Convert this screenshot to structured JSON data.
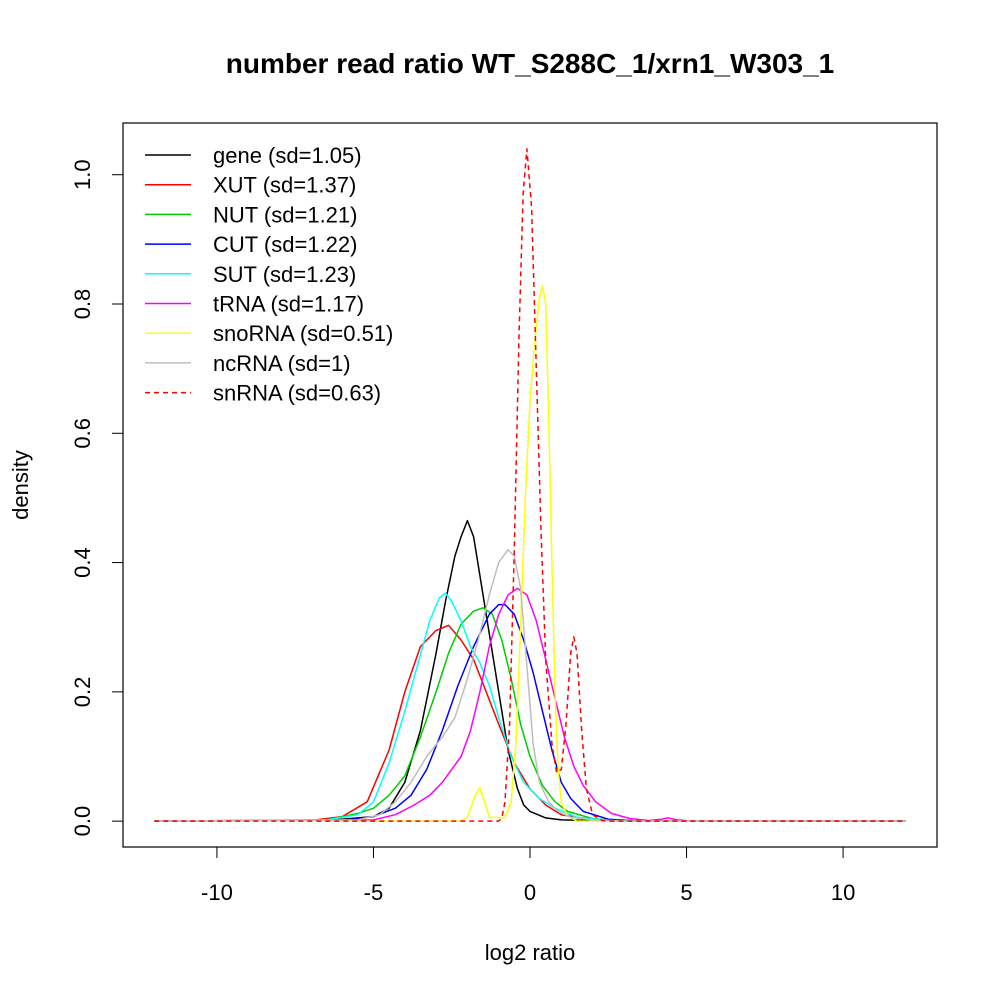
{
  "chart_data": {
    "type": "line",
    "title": "number read ratio WT_S288C_1/xrn1_W303_1",
    "xlabel": "log2 ratio",
    "ylabel": "density",
    "xlim": [
      -13,
      13
    ],
    "ylim": [
      -0.04,
      1.08
    ],
    "xticks": [
      -10,
      -5,
      0,
      5,
      10
    ],
    "xtick_labels": [
      "-10",
      "-5",
      "0",
      "5",
      "10"
    ],
    "yticks": [
      0.0,
      0.2,
      0.4,
      0.6,
      0.8,
      1.0
    ],
    "ytick_labels": [
      "0.0",
      "0.2",
      "0.4",
      "0.6",
      "0.8",
      "1.0"
    ],
    "grid": false,
    "legend_position": "top-left",
    "series": [
      {
        "name": "gene (sd=1.05)",
        "color": "#000000",
        "dash": "solid",
        "points": [
          [
            -12,
            0
          ],
          [
            -6.5,
            0.001
          ],
          [
            -5,
            0.007
          ],
          [
            -4.5,
            0.02
          ],
          [
            -4,
            0.06
          ],
          [
            -3.5,
            0.14
          ],
          [
            -3,
            0.26
          ],
          [
            -2.7,
            0.34
          ],
          [
            -2.4,
            0.41
          ],
          [
            -2.2,
            0.44
          ],
          [
            -2,
            0.465
          ],
          [
            -1.8,
            0.44
          ],
          [
            -1.6,
            0.38
          ],
          [
            -1.3,
            0.29
          ],
          [
            -1,
            0.2
          ],
          [
            -0.7,
            0.11
          ],
          [
            -0.4,
            0.05
          ],
          [
            -0.2,
            0.025
          ],
          [
            0,
            0.015
          ],
          [
            0.5,
            0.005
          ],
          [
            1,
            0.002
          ],
          [
            3,
            0
          ],
          [
            12,
            0
          ]
        ]
      },
      {
        "name": "XUT (sd=1.37)",
        "color": "#ff0000",
        "dash": "solid",
        "points": [
          [
            -12,
            0
          ],
          [
            -7,
            0.001
          ],
          [
            -6,
            0.007
          ],
          [
            -5.2,
            0.03
          ],
          [
            -4.5,
            0.11
          ],
          [
            -4,
            0.2
          ],
          [
            -3.5,
            0.27
          ],
          [
            -3,
            0.295
          ],
          [
            -2.6,
            0.303
          ],
          [
            -2.2,
            0.28
          ],
          [
            -1.8,
            0.25
          ],
          [
            -1.4,
            0.2
          ],
          [
            -1,
            0.15
          ],
          [
            -0.5,
            0.09
          ],
          [
            0,
            0.05
          ],
          [
            0.5,
            0.025
          ],
          [
            1,
            0.01
          ],
          [
            2,
            0.002
          ],
          [
            3,
            0
          ],
          [
            12,
            0
          ]
        ]
      },
      {
        "name": "NUT (sd=1.21)",
        "color": "#00cd00",
        "dash": "solid",
        "points": [
          [
            -12,
            0
          ],
          [
            -6.5,
            0.002
          ],
          [
            -5.5,
            0.012
          ],
          [
            -5,
            0.02
          ],
          [
            -4.5,
            0.04
          ],
          [
            -4,
            0.07
          ],
          [
            -3.5,
            0.13
          ],
          [
            -3,
            0.2
          ],
          [
            -2.6,
            0.26
          ],
          [
            -2.2,
            0.305
          ],
          [
            -1.8,
            0.325
          ],
          [
            -1.5,
            0.33
          ],
          [
            -1.2,
            0.32
          ],
          [
            -0.9,
            0.28
          ],
          [
            -0.6,
            0.22
          ],
          [
            -0.3,
            0.15
          ],
          [
            0,
            0.1
          ],
          [
            0.4,
            0.055
          ],
          [
            0.8,
            0.03
          ],
          [
            1.2,
            0.015
          ],
          [
            2,
            0.004
          ],
          [
            3,
            0
          ],
          [
            12,
            0
          ]
        ]
      },
      {
        "name": "CUT (sd=1.22)",
        "color": "#0000ff",
        "dash": "solid",
        "points": [
          [
            -12,
            0
          ],
          [
            -6,
            0.001
          ],
          [
            -5,
            0.007
          ],
          [
            -4.3,
            0.02
          ],
          [
            -3.8,
            0.04
          ],
          [
            -3.3,
            0.08
          ],
          [
            -2.8,
            0.14
          ],
          [
            -2.3,
            0.21
          ],
          [
            -1.8,
            0.27
          ],
          [
            -1.3,
            0.32
          ],
          [
            -1,
            0.335
          ],
          [
            -0.8,
            0.335
          ],
          [
            -0.5,
            0.32
          ],
          [
            -0.2,
            0.28
          ],
          [
            0.1,
            0.23
          ],
          [
            0.4,
            0.17
          ],
          [
            0.7,
            0.11
          ],
          [
            1,
            0.06
          ],
          [
            1.3,
            0.035
          ],
          [
            1.7,
            0.015
          ],
          [
            2.5,
            0.003
          ],
          [
            3.5,
            0
          ],
          [
            12,
            0
          ]
        ]
      },
      {
        "name": "SUT (sd=1.23)",
        "color": "#00ffff",
        "dash": "solid",
        "points": [
          [
            -12,
            0
          ],
          [
            -6.5,
            0.002
          ],
          [
            -5.5,
            0.01
          ],
          [
            -5,
            0.03
          ],
          [
            -4.5,
            0.09
          ],
          [
            -4,
            0.17
          ],
          [
            -3.6,
            0.24
          ],
          [
            -3.2,
            0.31
          ],
          [
            -2.9,
            0.345
          ],
          [
            -2.7,
            0.353
          ],
          [
            -2.5,
            0.34
          ],
          [
            -2.2,
            0.31
          ],
          [
            -1.9,
            0.27
          ],
          [
            -1.6,
            0.245
          ],
          [
            -1.3,
            0.21
          ],
          [
            -1,
            0.16
          ],
          [
            -0.6,
            0.1
          ],
          [
            -0.2,
            0.06
          ],
          [
            0.3,
            0.035
          ],
          [
            0.8,
            0.02
          ],
          [
            1.5,
            0.006
          ],
          [
            2.5,
            0.001
          ],
          [
            3.5,
            0
          ],
          [
            12,
            0
          ]
        ]
      },
      {
        "name": "tRNA (sd=1.17)",
        "color": "#ff00ff",
        "dash": "solid",
        "points": [
          [
            -12,
            0
          ],
          [
            -5,
            0.002
          ],
          [
            -4.3,
            0.01
          ],
          [
            -3.7,
            0.025
          ],
          [
            -3.2,
            0.04
          ],
          [
            -2.8,
            0.06
          ],
          [
            -2.5,
            0.08
          ],
          [
            -2.2,
            0.1
          ],
          [
            -1.9,
            0.14
          ],
          [
            -1.6,
            0.2
          ],
          [
            -1.3,
            0.27
          ],
          [
            -1,
            0.32
          ],
          [
            -0.7,
            0.35
          ],
          [
            -0.4,
            0.36
          ],
          [
            -0.1,
            0.35
          ],
          [
            0.2,
            0.31
          ],
          [
            0.5,
            0.25
          ],
          [
            0.8,
            0.19
          ],
          [
            1.1,
            0.13
          ],
          [
            1.4,
            0.085
          ],
          [
            1.7,
            0.055
          ],
          [
            2.1,
            0.03
          ],
          [
            2.6,
            0.012
          ],
          [
            3.2,
            0.004
          ],
          [
            3.8,
            0.001
          ],
          [
            4.2,
            0.003
          ],
          [
            4.4,
            0.005
          ],
          [
            4.7,
            0.002
          ],
          [
            5.2,
            0
          ],
          [
            12,
            0
          ]
        ]
      },
      {
        "name": "snoRNA (sd=0.51)",
        "color": "#ffff00",
        "dash": "solid",
        "points": [
          [
            -12,
            0
          ],
          [
            -2.2,
            0
          ],
          [
            -2,
            0.006
          ],
          [
            -1.75,
            0.04
          ],
          [
            -1.6,
            0.052
          ],
          [
            -1.45,
            0.03
          ],
          [
            -1.3,
            0.006
          ],
          [
            -0.8,
            0.005
          ],
          [
            -0.6,
            0.03
          ],
          [
            -0.45,
            0.12
          ],
          [
            -0.3,
            0.3
          ],
          [
            -0.15,
            0.5
          ],
          [
            0,
            0.65
          ],
          [
            0.15,
            0.74
          ],
          [
            0.3,
            0.81
          ],
          [
            0.4,
            0.828
          ],
          [
            0.5,
            0.8
          ],
          [
            0.6,
            0.62
          ],
          [
            0.7,
            0.4
          ],
          [
            0.8,
            0.2
          ],
          [
            0.9,
            0.08
          ],
          [
            1,
            0.03
          ],
          [
            1.2,
            0.008
          ],
          [
            1.5,
            0
          ],
          [
            12,
            0
          ]
        ]
      },
      {
        "name": "ncRNA (sd=1)",
        "color": "#bebebe",
        "dash": "solid",
        "points": [
          [
            -12,
            0
          ],
          [
            -5.5,
            0.002
          ],
          [
            -4.8,
            0.01
          ],
          [
            -4.3,
            0.03
          ],
          [
            -3.8,
            0.06
          ],
          [
            -3.3,
            0.1
          ],
          [
            -2.8,
            0.13
          ],
          [
            -2.4,
            0.16
          ],
          [
            -2,
            0.22
          ],
          [
            -1.6,
            0.29
          ],
          [
            -1.3,
            0.35
          ],
          [
            -1,
            0.4
          ],
          [
            -0.7,
            0.42
          ],
          [
            -0.5,
            0.41
          ],
          [
            -0.3,
            0.36
          ],
          [
            -0.1,
            0.24
          ],
          [
            0.1,
            0.12
          ],
          [
            0.3,
            0.06
          ],
          [
            0.6,
            0.03
          ],
          [
            0.9,
            0.015
          ],
          [
            1.3,
            0.006
          ],
          [
            2,
            0.002
          ],
          [
            3,
            0
          ],
          [
            12,
            0
          ]
        ]
      },
      {
        "name": "snRNA (sd=0.63)",
        "color": "#ff0000",
        "dash": "dashed",
        "points": [
          [
            -12,
            0
          ],
          [
            -1,
            0
          ],
          [
            -0.9,
            0.005
          ],
          [
            -0.8,
            0.03
          ],
          [
            -0.65,
            0.15
          ],
          [
            -0.5,
            0.42
          ],
          [
            -0.35,
            0.75
          ],
          [
            -0.22,
            0.97
          ],
          [
            -0.1,
            1.04
          ],
          [
            0.05,
            0.95
          ],
          [
            0.2,
            0.7
          ],
          [
            0.35,
            0.45
          ],
          [
            0.5,
            0.25
          ],
          [
            0.7,
            0.12
          ],
          [
            0.85,
            0.075
          ],
          [
            1,
            0.08
          ],
          [
            1.15,
            0.15
          ],
          [
            1.3,
            0.26
          ],
          [
            1.4,
            0.285
          ],
          [
            1.5,
            0.26
          ],
          [
            1.65,
            0.14
          ],
          [
            1.8,
            0.05
          ],
          [
            2,
            0.01
          ],
          [
            2.3,
            0.001
          ],
          [
            2.6,
            0
          ],
          [
            12,
            0
          ]
        ]
      }
    ]
  }
}
